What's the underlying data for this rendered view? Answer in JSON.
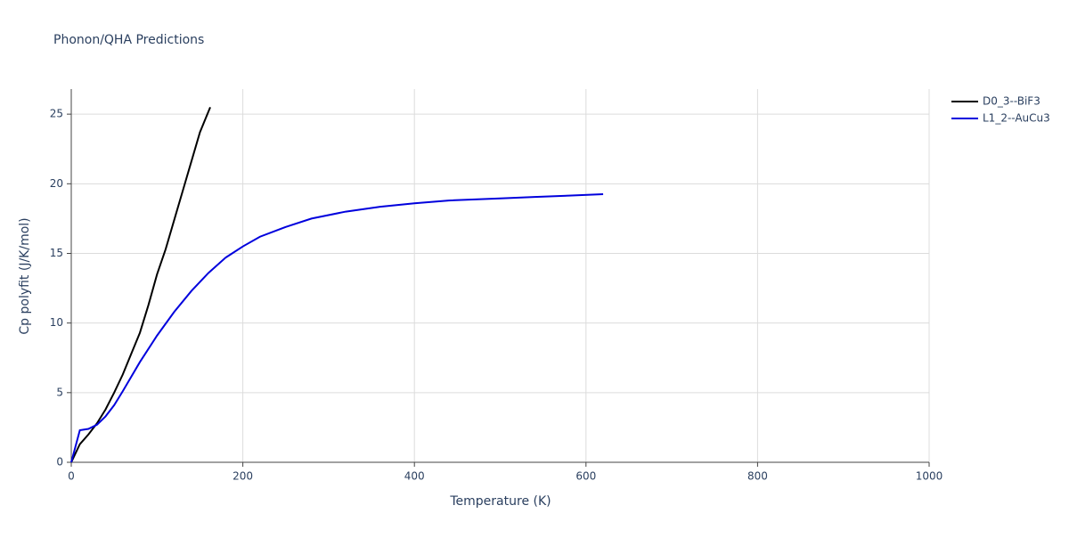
{
  "chart_data": {
    "type": "line",
    "title": "Phonon/QHA Predictions",
    "x_label": "Temperature (K)",
    "y_label": "Cp polyfit (J/K/mol)",
    "xlim": [
      0,
      1000
    ],
    "xticks": [
      0,
      200,
      400,
      600,
      800,
      1000
    ],
    "ylim": [
      0,
      26.8
    ],
    "yticks": [
      0,
      5,
      10,
      15,
      20,
      25
    ],
    "grid": true,
    "legend": "top-right",
    "series": [
      {
        "name": "D0_3--BiF3",
        "color": "#000000",
        "x": [
          0,
          10,
          20,
          30,
          40,
          50,
          60,
          70,
          80,
          90,
          100,
          110,
          120,
          130,
          140,
          150,
          162
        ],
        "values": [
          0,
          1.3,
          2,
          2.8,
          3.8,
          5,
          6.3,
          7.8,
          9.3,
          11.3,
          13.5,
          15.3,
          17.4,
          19.5,
          21.6,
          23.7,
          25.5
        ]
      },
      {
        "name": "L1_2--AuCu3",
        "color": "#0000dd",
        "x": [
          0,
          10,
          20,
          30,
          40,
          50,
          60,
          80,
          100,
          120,
          140,
          160,
          180,
          200,
          220,
          250,
          280,
          320,
          360,
          400,
          440,
          500,
          540,
          580,
          620
        ],
        "values": [
          0,
          2.3,
          2.4,
          2.7,
          3.3,
          4.1,
          5.1,
          7.2,
          9.1,
          10.8,
          12.3,
          13.6,
          14.7,
          15.5,
          16.2,
          16.9,
          17.5,
          18,
          18.35,
          18.6,
          18.8,
          18.95,
          19.05,
          19.15,
          19.25
        ]
      }
    ]
  }
}
